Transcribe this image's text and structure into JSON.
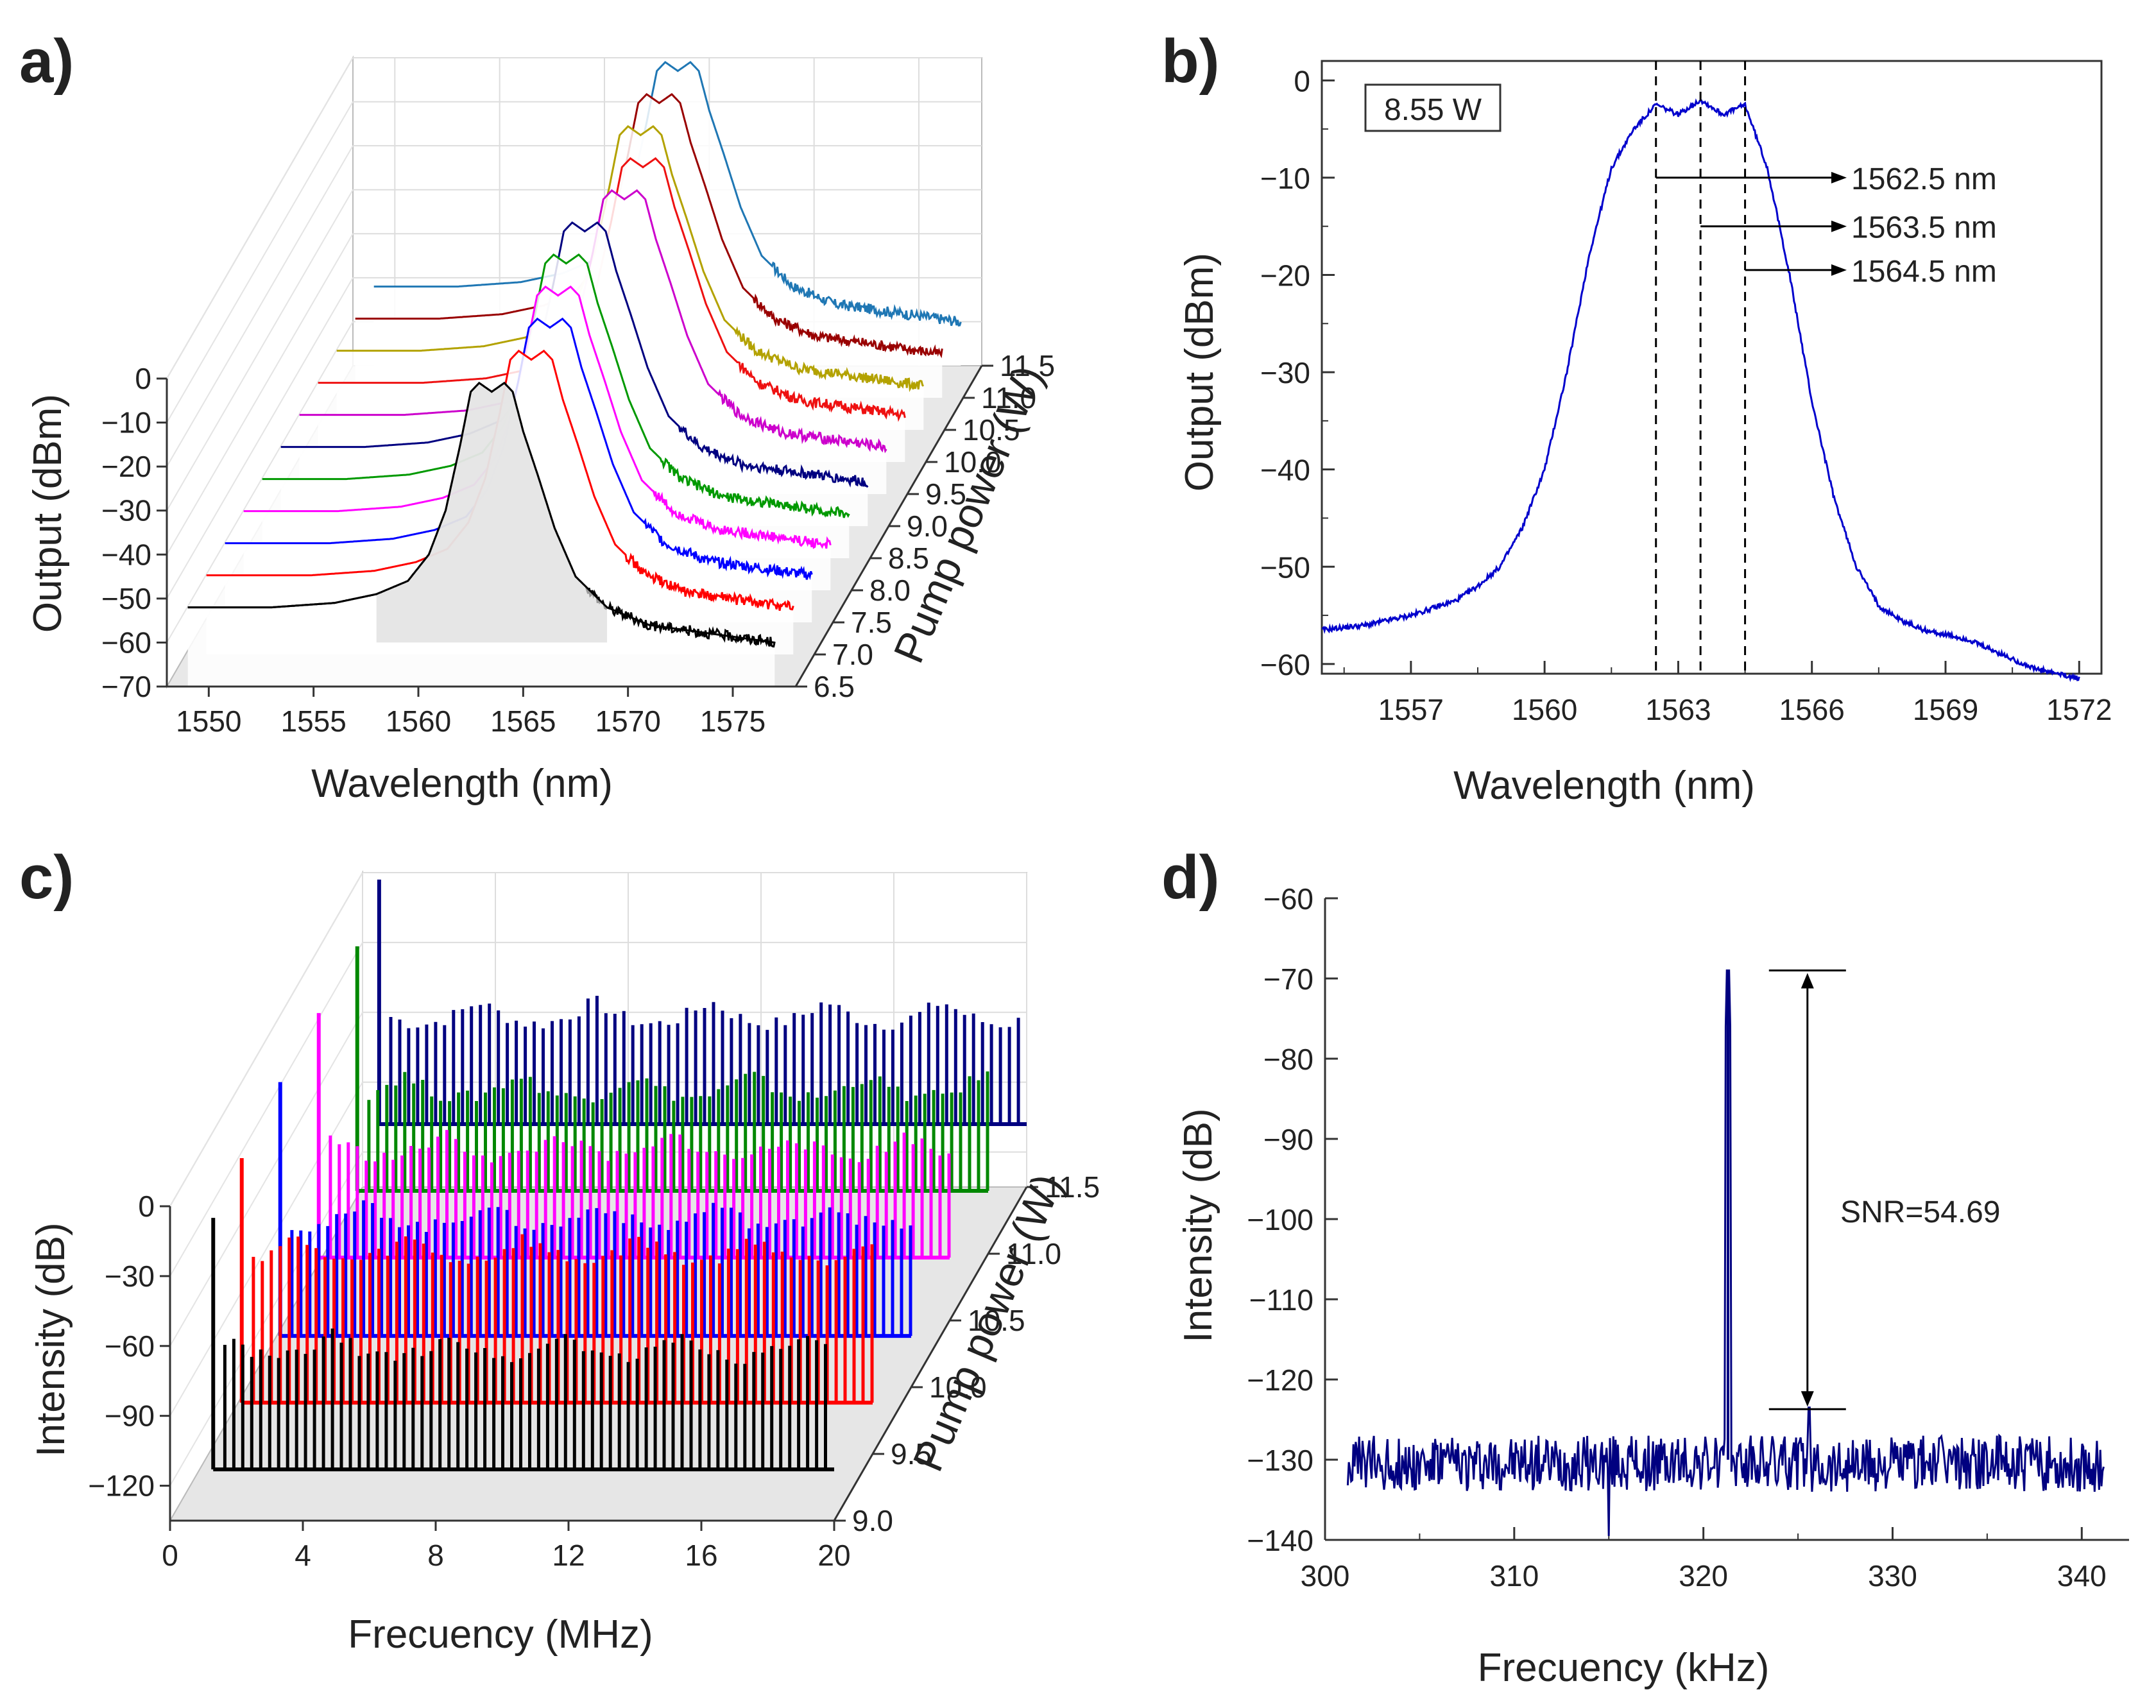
{
  "chart_data": [
    {
      "id": "a",
      "panel_label": "a)",
      "type": "line",
      "projection": "3d-waterfall",
      "xlabel": "Wavelength (nm)",
      "ylabel": "Output (dBm)",
      "zlabel": "Pump power (W)",
      "xlim": [
        1548,
        1578
      ],
      "ylim": [
        -70,
        0
      ],
      "zlim": [
        6.5,
        11.5
      ],
      "xticks": [
        "1550",
        "1555",
        "1560",
        "1565",
        "1570",
        "1575"
      ],
      "yticks": [
        "0",
        "−10",
        "−20",
        "−30",
        "−40",
        "−50",
        "−60",
        "−70"
      ],
      "zticks": [
        "6.5",
        "7.0",
        "7.5",
        "8.0",
        "8.5",
        "9.0",
        "9.5",
        "10.0",
        "10.5",
        "11.0",
        "11.5"
      ],
      "spectrum_profile": {
        "x": [
          1549,
          1553,
          1556,
          1558,
          1559.5,
          1560.5,
          1561.3,
          1562,
          1562.5,
          1562.9,
          1563.5,
          1564.1,
          1564.5,
          1565,
          1565.7,
          1566.5,
          1567.5,
          1569,
          1571,
          1574,
          1577
        ],
        "y": [
          -52,
          -52,
          -51,
          -49,
          -46,
          -40,
          -30,
          -15,
          -3,
          -1,
          -3,
          -1,
          -3,
          -12,
          -22,
          -34,
          -45,
          -52,
          -56,
          -58,
          -60
        ]
      },
      "series": [
        {
          "name": "6.5 W",
          "z": 6.5,
          "color": "#000000",
          "offset": 0
        },
        {
          "name": "7.0 W",
          "z": 7.0,
          "color": "#ff0000",
          "offset": 1
        },
        {
          "name": "7.5 W",
          "z": 7.5,
          "color": "#0000ff",
          "offset": 1
        },
        {
          "name": "8.0 W",
          "z": 8.0,
          "color": "#ff00ff",
          "offset": 0.5
        },
        {
          "name": "8.5 W",
          "z": 8.5,
          "color": "#009900",
          "offset": 0
        },
        {
          "name": "9.0 W",
          "z": 9.0,
          "color": "#000080",
          "offset": 0
        },
        {
          "name": "9.5 W",
          "z": 9.5,
          "color": "#cc00cc",
          "offset": 1
        },
        {
          "name": "10.0 W",
          "z": 10.0,
          "color": "#ee1111",
          "offset": 1
        },
        {
          "name": "10.5 W",
          "z": 10.5,
          "color": "#b3a200",
          "offset": 0
        },
        {
          "name": "11.0 W",
          "z": 11.0,
          "color": "#990000",
          "offset": 0
        },
        {
          "name": "11.5 W",
          "z": 11.5,
          "color": "#1f77b4",
          "offset": 0
        }
      ]
    },
    {
      "id": "b",
      "panel_label": "b)",
      "type": "line",
      "xlabel": "Wavelength (nm)",
      "ylabel": "Output (dBm)",
      "xlim": [
        1555,
        1572.5
      ],
      "ylim": [
        -61,
        2
      ],
      "xticks": [
        1557,
        1560,
        1563,
        1566,
        1569,
        1572
      ],
      "yticks": [
        0,
        -10,
        -20,
        -30,
        -40,
        -50,
        -60
      ],
      "yticks_text": [
        "0",
        "−10",
        "−20",
        "−30",
        "−40",
        "−50",
        "−60"
      ],
      "color": "#0000cc",
      "box_label": "8.55 W",
      "series": [
        {
          "name": "8.55 W",
          "x": [
            1555,
            1556,
            1557,
            1558,
            1558.5,
            1559,
            1559.5,
            1560,
            1560.5,
            1561,
            1561.5,
            1562,
            1562.5,
            1563,
            1563.5,
            1564,
            1564.5,
            1565,
            1565.5,
            1566,
            1566.5,
            1567,
            1567.5,
            1568,
            1568.5,
            1569,
            1569.5,
            1570,
            1570.5,
            1571,
            1571.5,
            1572
          ],
          "y": [
            -56.5,
            -56,
            -55,
            -53.5,
            -52,
            -50,
            -46,
            -40,
            -30,
            -18,
            -9,
            -5,
            -2.5,
            -3.5,
            -2,
            -3.5,
            -2.5,
            -9,
            -20,
            -33,
            -43,
            -50,
            -54,
            -55.5,
            -56.5,
            -57,
            -57.5,
            -58.5,
            -59.5,
            -60.5,
            -61,
            -61.5
          ]
        }
      ],
      "markers": [
        {
          "x": 1562.5,
          "label": "1562.5 nm",
          "y_arrow": -10
        },
        {
          "x": 1563.5,
          "label": "1563.5 nm",
          "y_arrow": -15
        },
        {
          "x": 1564.5,
          "label": "1564.5 nm",
          "y_arrow": -19.5
        }
      ]
    },
    {
      "id": "c",
      "panel_label": "c)",
      "type": "bar",
      "projection": "3d-waterfall",
      "xlabel": "Frecuency (MHz)",
      "ylabel": "Intensity (dB)",
      "zlabel": "Pump power (W)",
      "xlim": [
        0,
        20
      ],
      "ylim": [
        -135,
        0
      ],
      "zlim": [
        9.0,
        11.5
      ],
      "xticks": [
        "0",
        "4",
        "8",
        "12",
        "16",
        "20"
      ],
      "yticks": [
        "0",
        "−30",
        "−60",
        "−90",
        "−120"
      ],
      "zticks": [
        "9.0",
        "9.5",
        "10.0",
        "10.5",
        "11.0",
        "11.5"
      ],
      "series": [
        {
          "name": "9.0 W",
          "z": 9.0,
          "color": "#000000",
          "fundamental_x": 1.3,
          "noise_floor": -113,
          "line_level": -55,
          "peak": -5
        },
        {
          "name": "9.5 W",
          "z": 9.5,
          "color": "#ff0000",
          "fundamental_x": 1.0,
          "noise_floor": -113,
          "line_level": -42,
          "peak": -8
        },
        {
          "name": "10.0 W",
          "z": 10.0,
          "color": "#0000ff",
          "fundamental_x": 1.0,
          "noise_floor": -113,
          "line_level": -56,
          "peak": -4
        },
        {
          "name": "10.5 W",
          "z": 10.5,
          "color": "#ff00ff",
          "fundamental_x": 1.0,
          "noise_floor": -108,
          "line_level": -55,
          "peak": -3
        },
        {
          "name": "11.0 W",
          "z": 11.0,
          "color": "#008800",
          "fundamental_x": 1.0,
          "noise_floor": -108,
          "line_level": -58,
          "peak": -3
        },
        {
          "name": "11.5 W",
          "z": 11.5,
          "color": "#000080",
          "fundamental_x": 0.5,
          "noise_floor": -108,
          "line_level": -55,
          "peak": -3
        }
      ]
    },
    {
      "id": "d",
      "panel_label": "d)",
      "type": "line",
      "xlabel": "Frecuency (kHz)",
      "ylabel": "Intensity (dB)",
      "xlim": [
        300,
        342.5
      ],
      "ylim": [
        -140,
        -60
      ],
      "xticks": [
        300,
        310,
        320,
        330,
        340
      ],
      "yticks": [
        -60,
        -70,
        -80,
        -90,
        -100,
        -110,
        -120,
        -130,
        -140
      ],
      "yticks_text": [
        "−60",
        "−70",
        "−80",
        "−90",
        "−100",
        "−110",
        "−120",
        "−130",
        "−140"
      ],
      "color": "#000080",
      "x_range": [
        301.2,
        341.2
      ],
      "noise_floor": -130.5,
      "peak": {
        "x": 321.3,
        "y": -69
      },
      "snr_bracket": {
        "x": 325.5,
        "top": -69,
        "bottom": -123.7
      },
      "annotation": "SNR=54.69"
    }
  ]
}
